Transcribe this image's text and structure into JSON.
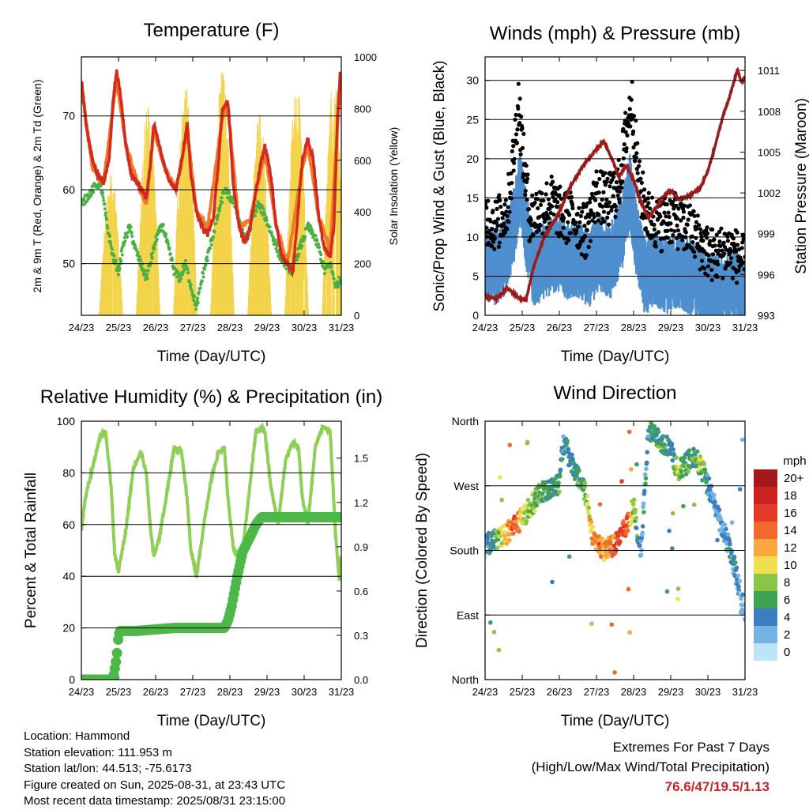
{
  "time_axis": {
    "ticks": [
      "24/23",
      "25/23",
      "26/23",
      "27/23",
      "28/23",
      "29/23",
      "30/23",
      "31/23"
    ],
    "xlabel": "Time (Day/UTC)"
  },
  "chart_data": [
    {
      "id": "temperature",
      "type": "line",
      "title": "Temperature (F)",
      "xlabel": "Time (Day/UTC)",
      "ylabel": "2m & 9m T (Red, Orange) & 2m Td (Green)",
      "ylabel_right": "Solar Insolation (Yellow)",
      "x_unit": "days since 24/23 UTC",
      "ylim": [
        43,
        78
      ],
      "yticks": [
        50,
        60,
        70
      ],
      "ylim_right": [
        0,
        1000
      ],
      "yticks_right": [
        0,
        200,
        400,
        600,
        800,
        1000
      ],
      "colors": {
        "t2m": "#d42a1e",
        "t9m": "#f07a2a",
        "td": "#4bb043",
        "solar": "#f2d34a"
      },
      "series": [
        {
          "name": "2m T",
          "x": [
            0,
            0.15,
            0.3,
            0.45,
            0.6,
            0.75,
            0.85,
            0.95,
            1.05,
            1.2,
            1.35,
            1.5,
            1.62,
            1.75,
            1.85,
            1.95,
            2.1,
            2.25,
            2.4,
            2.55,
            2.7,
            2.85,
            2.95,
            3.1,
            3.25,
            3.4,
            3.55,
            3.7,
            3.8,
            3.95,
            4.1,
            4.25,
            4.4,
            4.55,
            4.7,
            4.85,
            4.95,
            5.1,
            5.25,
            5.4,
            5.55,
            5.7,
            5.8,
            5.95,
            6.1,
            6.25,
            6.4,
            6.55,
            6.7,
            6.8,
            6.9,
            6.97,
            7.0
          ],
          "y": [
            75,
            68,
            64,
            62,
            61,
            64,
            72,
            76,
            73,
            66,
            62,
            61,
            60,
            59,
            63,
            69,
            66,
            63,
            61,
            60,
            64,
            69,
            62,
            57,
            55,
            54,
            56,
            64,
            71,
            72,
            60,
            55,
            53,
            55,
            60,
            64,
            66,
            62,
            55,
            51,
            50,
            49,
            55,
            64,
            67,
            64,
            56,
            52,
            51,
            55,
            70,
            76,
            72
          ]
        },
        {
          "name": "9m T",
          "x": [
            0,
            0.3,
            0.6,
            0.85,
            0.95,
            1.2,
            1.5,
            1.75,
            1.95,
            2.25,
            2.55,
            2.85,
            3.1,
            3.4,
            3.8,
            3.95,
            4.25,
            4.55,
            4.85,
            4.95,
            5.25,
            5.55,
            5.95,
            6.1,
            6.4,
            6.7,
            6.9,
            7.0
          ],
          "y": [
            74,
            63,
            61,
            71,
            75,
            66,
            61,
            58,
            68,
            63,
            60,
            68,
            57,
            55,
            70,
            71,
            55,
            56,
            63,
            65,
            55,
            50,
            63,
            66,
            56,
            52,
            69,
            75
          ]
        },
        {
          "name": "2m Td",
          "x": [
            0,
            0.15,
            0.3,
            0.45,
            0.55,
            0.7,
            0.85,
            1.0,
            1.15,
            1.3,
            1.45,
            1.6,
            1.75,
            1.9,
            2.05,
            2.2,
            2.35,
            2.5,
            2.65,
            2.8,
            2.95,
            3.1,
            3.25,
            3.4,
            3.55,
            3.7,
            3.85,
            4.0,
            4.15,
            4.3,
            4.45,
            4.6,
            4.75,
            4.9,
            5.05,
            5.2,
            5.35,
            5.5,
            5.65,
            5.8,
            5.95,
            6.1,
            6.25,
            6.4,
            6.55,
            6.7,
            6.85,
            7.0
          ],
          "y": [
            58,
            59,
            60,
            61,
            60,
            55,
            51,
            49,
            53,
            55,
            52,
            50,
            48,
            51,
            54,
            55,
            52,
            49,
            48,
            50,
            47,
            44,
            48,
            51,
            54,
            57,
            60,
            59,
            58,
            55,
            53,
            56,
            58,
            57,
            55,
            53,
            51,
            50,
            49,
            51,
            53,
            55,
            54,
            52,
            49,
            50,
            47,
            48
          ]
        },
        {
          "name": "Solar Insolation",
          "axis": "right",
          "peaks_x": [
            0.8,
            1.8,
            2.8,
            3.8,
            4.8,
            5.8,
            6.8
          ],
          "peaks_y": [
            560,
            820,
            900,
            960,
            780,
            900,
            930
          ]
        }
      ]
    },
    {
      "id": "winds",
      "type": "scatter",
      "title": "Winds (mph) & Pressure (mb)",
      "xlabel": "Time (Day/UTC)",
      "ylabel": "Sonic/Prop Wind & Gust (Blue, Black)",
      "ylabel_right": "Station Pressure (Maroon)",
      "x_unit": "days since 24/23 UTC",
      "ylim": [
        0,
        33
      ],
      "yticks": [
        0,
        5,
        10,
        15,
        20,
        25,
        30
      ],
      "ylim_right": [
        993,
        1012
      ],
      "yticks_right": [
        993,
        996,
        999,
        1002,
        1005,
        1008,
        1011
      ],
      "colors": {
        "wind": "#4f8fce",
        "gust": "#000000",
        "pressure": "#9b1b1b"
      },
      "series": [
        {
          "name": "Wind",
          "x": [
            0,
            0.3,
            0.6,
            0.8,
            0.95,
            1.1,
            1.3,
            1.6,
            1.9,
            2.2,
            2.5,
            2.8,
            3.1,
            3.4,
            3.7,
            3.9,
            4.1,
            4.3,
            4.6,
            4.9,
            5.2,
            5.5,
            5.8,
            6.1,
            6.4,
            6.7,
            7.0
          ],
          "y": [
            8,
            7,
            9,
            13,
            18,
            12,
            7,
            8,
            9,
            8,
            8,
            7,
            9,
            8,
            12,
            17,
            10,
            6,
            7,
            6,
            7,
            6,
            5,
            4,
            4,
            5,
            3
          ]
        },
        {
          "name": "Gust",
          "x": [
            0,
            0.3,
            0.6,
            0.75,
            0.9,
            1.0,
            1.2,
            1.5,
            1.8,
            2.1,
            2.4,
            2.7,
            3.0,
            3.3,
            3.6,
            3.8,
            3.95,
            4.15,
            4.4,
            4.7,
            5.0,
            5.3,
            5.6,
            5.9,
            6.2,
            6.5,
            6.8,
            7.0
          ],
          "y": [
            13,
            12,
            14,
            20,
            28,
            22,
            13,
            14,
            15,
            13,
            13,
            11,
            16,
            15,
            17,
            24,
            28,
            17,
            13,
            12,
            13,
            12,
            11,
            9,
            8,
            9,
            8,
            7
          ]
        },
        {
          "name": "Station Pressure",
          "axis": "right",
          "x": [
            0,
            0.3,
            0.6,
            0.9,
            1.1,
            1.3,
            1.6,
            1.9,
            2.1,
            2.3,
            2.6,
            2.9,
            3.2,
            3.4,
            3.6,
            3.8,
            4.0,
            4.2,
            4.4,
            4.6,
            4.8,
            5.0,
            5.2,
            5.5,
            5.8,
            6.0,
            6.2,
            6.4,
            6.6,
            6.8,
            6.9,
            7.0
          ],
          "y": [
            994.4,
            994.2,
            995.0,
            994.3,
            994.1,
            996.5,
            998.8,
            1000.1,
            1001.2,
            1002.5,
            1003.8,
            1004.9,
            1005.8,
            1004.6,
            1003.2,
            1004.0,
            1003.0,
            1001.3,
            1000.2,
            1000.9,
            1001.7,
            1002.2,
            1001.5,
            1001.8,
            1002.4,
            1003.6,
            1005.5,
            1007.6,
            1009.2,
            1011.1,
            1010.1,
            1010.5
          ]
        }
      ]
    },
    {
      "id": "humidity",
      "type": "line",
      "title": "Relative Humidity (%) & Precipitation (in)",
      "xlabel": "Time (Day/UTC)",
      "ylabel": "Percent & Total Rainfall",
      "x_unit": "days since 24/23 UTC",
      "ylim": [
        0,
        100
      ],
      "yticks": [
        0,
        20,
        40,
        60,
        80,
        100
      ],
      "ylim_right": [
        0,
        1.75
      ],
      "yticks_right": [
        "0.0",
        "0.3",
        "0.6",
        "0.9",
        "1.2",
        "1.5"
      ],
      "colors": {
        "rh": "#8fcf55",
        "rain": "#4db848"
      },
      "series": [
        {
          "name": "RH",
          "x": [
            0,
            0.1,
            0.3,
            0.5,
            0.65,
            0.8,
            0.9,
            1.0,
            1.2,
            1.4,
            1.6,
            1.75,
            1.85,
            1.95,
            2.1,
            2.3,
            2.5,
            2.7,
            2.85,
            2.95,
            3.1,
            3.3,
            3.5,
            3.7,
            3.85,
            3.95,
            4.1,
            4.3,
            4.5,
            4.7,
            4.85,
            4.95,
            5.1,
            5.3,
            5.5,
            5.7,
            5.85,
            5.95,
            6.1,
            6.3,
            6.5,
            6.7,
            6.85,
            6.95,
            7.0
          ],
          "y": [
            57,
            70,
            82,
            94,
            96,
            75,
            48,
            42,
            58,
            82,
            88,
            80,
            60,
            48,
            55,
            72,
            90,
            88,
            70,
            50,
            40,
            60,
            78,
            88,
            90,
            70,
            50,
            45,
            70,
            96,
            98,
            95,
            75,
            60,
            85,
            92,
            90,
            70,
            60,
            90,
            98,
            96,
            55,
            38,
            50
          ]
        },
        {
          "name": "Total Rainfall",
          "axis": "right",
          "x": [
            0,
            0.85,
            0.95,
            1.0,
            1.05,
            1.5,
            2.0,
            2.5,
            3.0,
            3.5,
            3.85,
            3.95,
            4.05,
            4.2,
            4.35,
            4.55,
            4.7,
            4.85,
            5.0,
            5.5,
            6.0,
            6.5,
            7.0
          ],
          "y": [
            0,
            0,
            0.15,
            0.3,
            0.33,
            0.33,
            0.34,
            0.35,
            0.35,
            0.35,
            0.35,
            0.4,
            0.5,
            0.7,
            0.87,
            0.97,
            1.05,
            1.1,
            1.1,
            1.1,
            1.1,
            1.1,
            1.1
          ]
        }
      ]
    },
    {
      "id": "wind_direction",
      "type": "scatter",
      "title": "Wind Direction",
      "xlabel": "Time (Day/UTC)",
      "ylabel": "Direction (Colored By Speed)",
      "x_unit": "days since 24/23 UTC",
      "ylim": [
        0,
        360
      ],
      "ytick_labels": [
        "North",
        "East",
        "South",
        "West",
        "North"
      ],
      "yticks": [
        0,
        90,
        180,
        270,
        360
      ],
      "colorbar": {
        "title": "mph",
        "labels": [
          "20+",
          "18",
          "16",
          "14",
          "12",
          "10",
          "8",
          "6",
          "4",
          "2",
          "0"
        ],
        "colors": [
          "#a31a1c",
          "#cc2420",
          "#e23b27",
          "#f06a2c",
          "#f9a73e",
          "#f0e050",
          "#8cc443",
          "#3fa356",
          "#3c7fc0",
          "#74b2e2",
          "#bde4f7"
        ]
      },
      "series": [
        {
          "name": "Direction",
          "x": [
            0,
            0.2,
            0.4,
            0.6,
            0.8,
            1.0,
            1.2,
            1.4,
            1.6,
            1.8,
            2.0,
            2.1,
            2.2,
            2.4,
            2.6,
            2.8,
            2.9,
            3.0,
            3.2,
            3.4,
            3.6,
            3.8,
            4.0,
            4.2,
            4.4,
            4.6,
            4.8,
            5.0,
            5.2,
            5.4,
            5.6,
            5.8,
            6.0,
            6.2,
            6.4,
            6.6,
            6.8,
            7.0
          ],
          "y": [
            185,
            195,
            200,
            205,
            215,
            225,
            240,
            255,
            262,
            268,
            275,
            330,
            320,
            290,
            280,
            235,
            200,
            190,
            180,
            185,
            195,
            210,
            240,
            180,
            345,
            340,
            330,
            320,
            290,
            300,
            310,
            300,
            270,
            240,
            210,
            180,
            140,
            90
          ],
          "speed": [
            3,
            5,
            8,
            12,
            15,
            10,
            8,
            7,
            6,
            5,
            6,
            3,
            4,
            5,
            6,
            10,
            13,
            14,
            12,
            14,
            16,
            15,
            8,
            3,
            4,
            5,
            6,
            4,
            8,
            6,
            5,
            9,
            4,
            3,
            3,
            5,
            3,
            2
          ]
        }
      ]
    }
  ],
  "station_info": {
    "location": "Location: Hammond",
    "elevation": "Station elevation: 111.953 m",
    "latlon": "Station lat/lon: 44.513; -75.6173",
    "created": "Figure created on Sun, 2025-08-31, at 23:43 UTC",
    "latest": "Most recent data timestamp: 2025/08/31 23:15:00"
  },
  "extremes": {
    "heading": "Extremes For Past 7 Days",
    "subheading": "(High/Low/Max Wind/Total Precipitation)",
    "values": "76.6/47/19.5/1.13"
  }
}
